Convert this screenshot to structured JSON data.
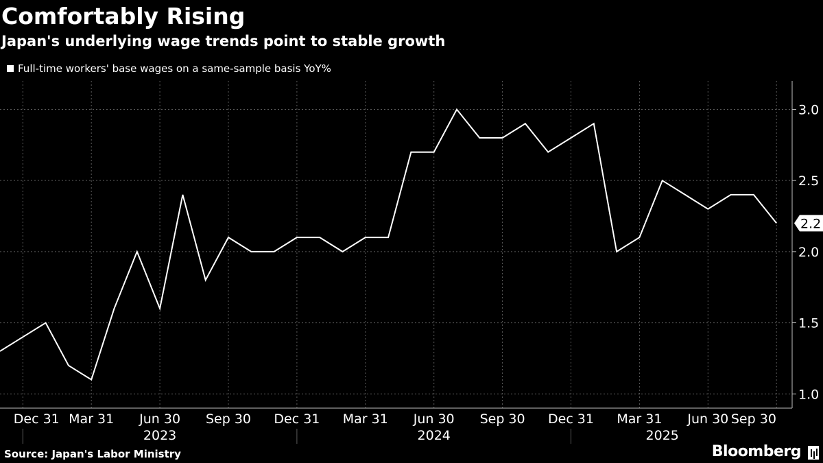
{
  "chart_data": {
    "type": "line",
    "title": "Comfortably Rising",
    "subtitle": "Japan's underlying wage trends point to stable growth",
    "series": [
      {
        "name": "Full-time workers' base wages on a same-sample basis YoY%",
        "color": "#ffffff",
        "values": [
          1.3,
          1.4,
          1.5,
          1.2,
          1.1,
          1.6,
          2.0,
          1.6,
          2.4,
          1.8,
          2.1,
          2.0,
          2.0,
          2.1,
          2.1,
          2.0,
          2.1,
          2.1,
          2.7,
          2.7,
          3.0,
          2.8,
          2.8,
          2.9,
          2.7,
          2.8,
          2.9,
          2.0,
          2.1,
          2.5,
          2.4,
          2.3,
          2.4,
          2.4,
          2.2
        ]
      }
    ],
    "ylim": [
      0.9,
      3.2
    ],
    "y_ticks": [
      "1.0",
      "1.5",
      "2.0",
      "2.5",
      "3.0"
    ],
    "y_tick_values": [
      1.0,
      1.5,
      2.0,
      2.5,
      3.0
    ],
    "last_value_label": "2.2",
    "x_tick_labels": [
      {
        "label": "Dec 31",
        "index": 1.6
      },
      {
        "label": "Mar 31",
        "index": 4.0
      },
      {
        "label": "Jun 30",
        "index": 7.0
      },
      {
        "label": "Sep 30",
        "index": 10.0
      },
      {
        "label": "Dec 31",
        "index": 13.0
      },
      {
        "label": "Mar 31",
        "index": 16.0
      },
      {
        "label": "Jun 30",
        "index": 19.0
      },
      {
        "label": "Sep 30",
        "index": 22.0
      },
      {
        "label": "Dec 31",
        "index": 25.0
      },
      {
        "label": "Mar 31",
        "index": 28.0
      },
      {
        "label": "Jun 30",
        "index": 31.0
      },
      {
        "label": "Sep 30",
        "index": 33.0
      }
    ],
    "x_grid_indices": [
      1.0,
      4.0,
      7.0,
      10.0,
      13.0,
      16.0,
      19.0,
      22.0,
      25.0,
      28.0,
      31.0,
      34.0
    ],
    "years": [
      {
        "label": "2023",
        "index": 7.0
      },
      {
        "label": "2024",
        "index": 19.0
      },
      {
        "label": "2025",
        "index": 29.0
      }
    ],
    "year_separators": [
      1.0,
      13.0,
      25.0
    ],
    "grid": true
  },
  "source": "Source: Japan's Labor Ministry",
  "brand": "Bloomberg"
}
